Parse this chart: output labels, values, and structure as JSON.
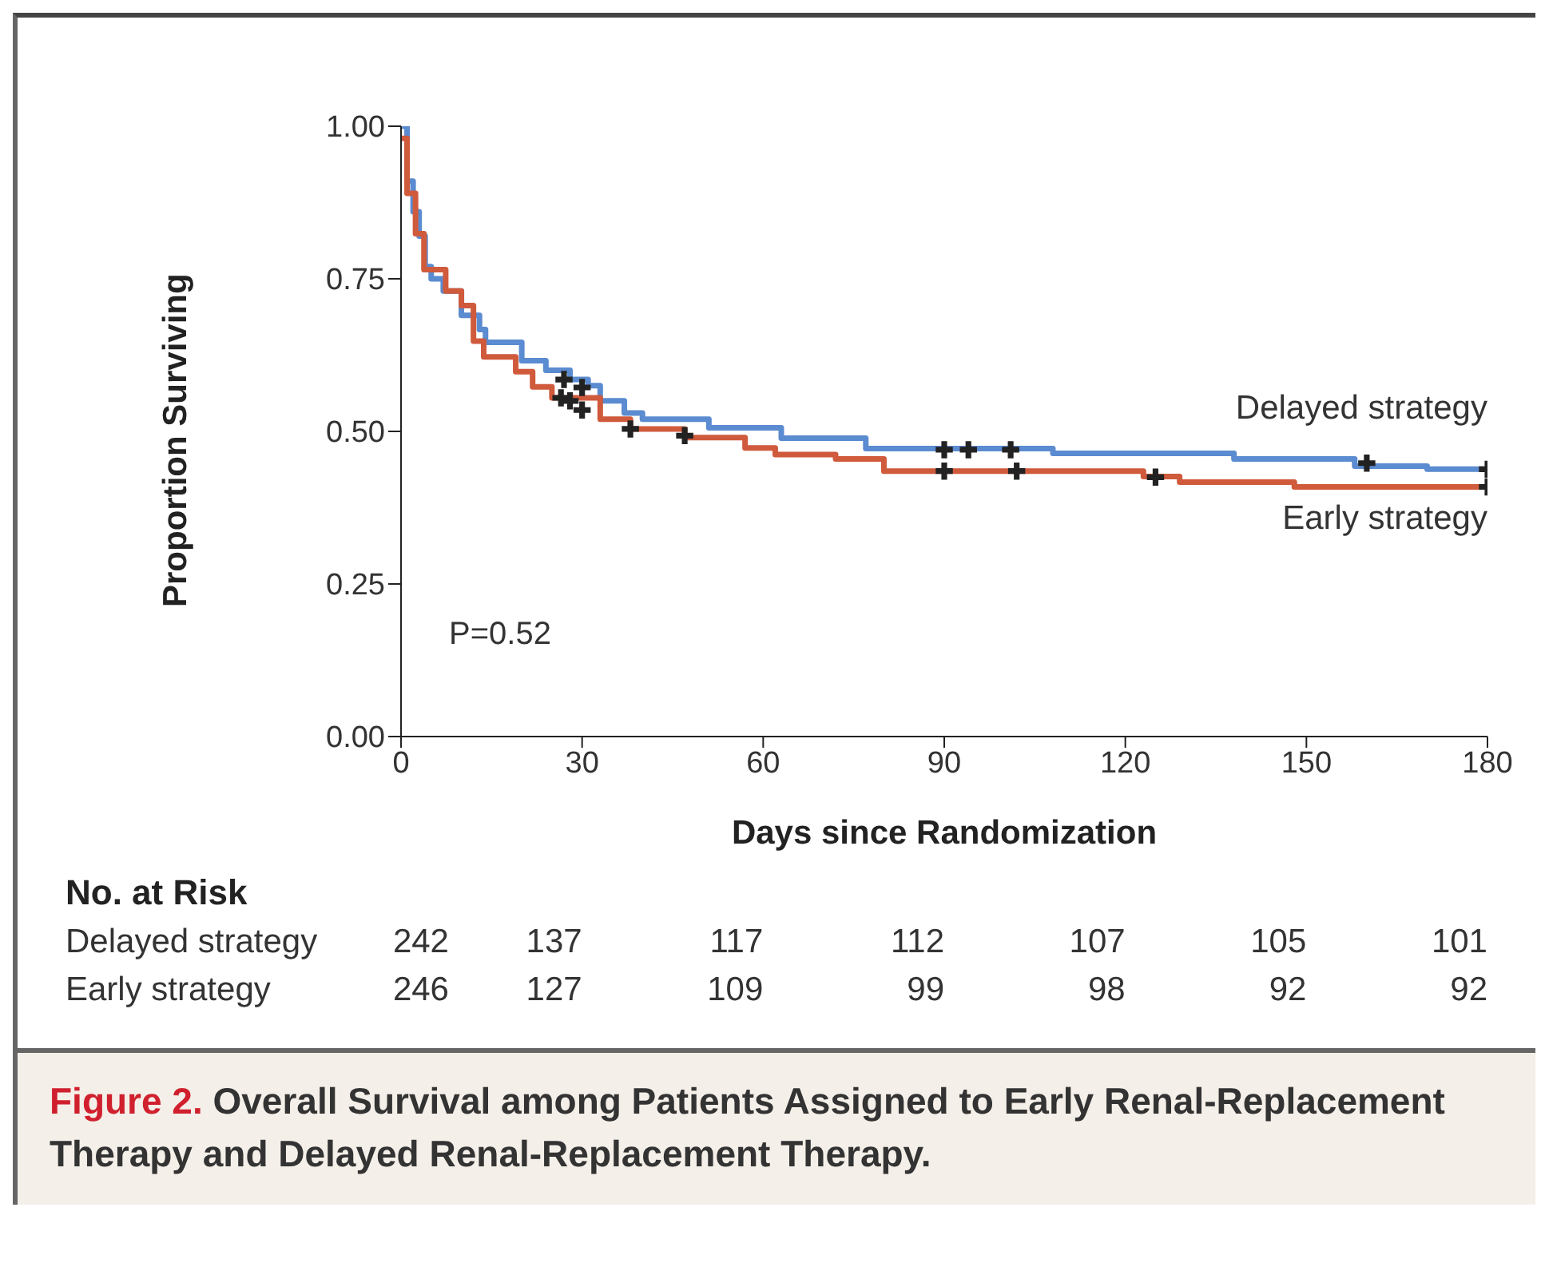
{
  "chart_data": {
    "type": "step",
    "xlabel": "Days since Randomization",
    "ylabel": "Proportion Surviving",
    "xlim": [
      0,
      180
    ],
    "xticks": [
      0,
      30,
      60,
      90,
      120,
      150,
      180
    ],
    "ylim": [
      0,
      1
    ],
    "yticks": [
      {
        "value": 0,
        "label": "0.00"
      },
      {
        "value": 0.25,
        "label": "0.25"
      },
      {
        "value": 0.5,
        "label": "0.50"
      },
      {
        "value": 0.75,
        "label": "0.75"
      },
      {
        "value": 1,
        "label": "1.00"
      }
    ],
    "grid": false,
    "legend": false,
    "line_style": "solid",
    "marker": "none",
    "series": [
      {
        "name": "Delayed strategy",
        "color": "#5b8bd0",
        "x": [
          0,
          1,
          2,
          3,
          4,
          5,
          7,
          10,
          13,
          14,
          20,
          24,
          28,
          31,
          33,
          37,
          40,
          51,
          63,
          77,
          108,
          138,
          158,
          170,
          180
        ],
        "values": [
          1.0,
          0.91,
          0.86,
          0.82,
          0.77,
          0.75,
          0.73,
          0.69,
          0.667,
          0.646,
          0.616,
          0.6,
          0.585,
          0.575,
          0.55,
          0.53,
          0.52,
          0.506,
          0.489,
          0.472,
          0.464,
          0.455,
          0.443,
          0.438,
          0.438
        ]
      },
      {
        "name": "Early strategy",
        "color": "#d05a3c",
        "x": [
          0,
          1,
          2.4,
          3.8,
          7.4,
          10,
          12,
          13.7,
          19,
          21.8,
          25,
          33,
          38,
          47,
          57,
          62,
          72,
          80,
          123,
          129,
          148,
          180
        ],
        "values": [
          0.98,
          0.89,
          0.824,
          0.765,
          0.73,
          0.706,
          0.648,
          0.622,
          0.598,
          0.573,
          0.555,
          0.52,
          0.504,
          0.49,
          0.473,
          0.462,
          0.455,
          0.435,
          0.426,
          0.417,
          0.409,
          0.409
        ]
      },
      {
        "type": "scatter",
        "color": "#222222",
        "marker": "cross",
        "x": [
          27,
          30,
          90,
          94,
          101,
          160,
          180
        ],
        "values": [
          0.585,
          0.572,
          0.47,
          0.47,
          0.47,
          0.448,
          0.438
        ]
      },
      {
        "type": "scatter",
        "color": "#222222",
        "marker": "cross",
        "x": [
          26.5,
          27.5,
          28,
          30,
          38,
          47,
          90,
          102,
          125,
          180
        ],
        "values": [
          0.555,
          null,
          0.55,
          0.535,
          0.504,
          0.493,
          0.435,
          0.435,
          0.425,
          0.409
        ]
      }
    ],
    "annotations": [
      "P=0.52",
      "No. at Risk",
      "Delayed strategy  242  137  117  112  107  105  101",
      "Early strategy  246  127  109  99  98  92  92",
      "Figure 2. Overall Survival among Patients Assigned to Early Renal-Replacement Therapy and Delayed Renal-Replacement Therapy."
    ]
  }
}
